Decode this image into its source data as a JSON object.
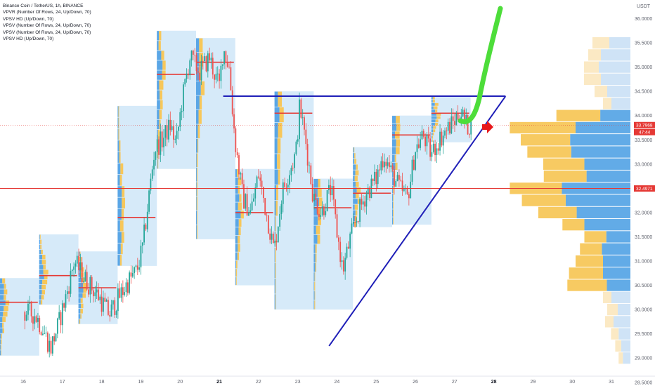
{
  "legend": {
    "title": "Binance Coin / TetherUS, 1h, BINANCE",
    "indicators": [
      "VPVR (Number Of Rows, 24, Up/Down, 70)",
      "VPSV HD (Up/Down, 70)",
      "VPSV (Number Of Rows, 24, Up/Down, 70)",
      "VPSV (Number Of Rows, 24, Up/Down, 70)",
      "VPSV HD (Up/Down, 70)"
    ]
  },
  "price_axis": {
    "currency": "USDT",
    "ticks": [
      "36.0000",
      "35.5000",
      "35.0000",
      "34.5000",
      "34.0000",
      "33.5000",
      "33.0000",
      "32.5000",
      "32.0000",
      "31.5000",
      "31.0000",
      "30.5000",
      "30.0000",
      "29.5000",
      "29.0000",
      "28.5000"
    ],
    "current_price": "33.7968",
    "countdown": "47:44",
    "marked_price": "32.4971"
  },
  "time_axis": {
    "ticks": [
      "16",
      "17",
      "18",
      "19",
      "20",
      "21",
      "22",
      "23",
      "24",
      "25",
      "26",
      "27",
      "28",
      "29",
      "30",
      "31"
    ],
    "bold_ticks": [
      "21",
      "28"
    ]
  },
  "colors": {
    "up": "#26a69a",
    "down": "#ef5350",
    "profile_box": "#cfe6f8",
    "vol_up": "#5aa6e6",
    "vol_down": "#f7c75a",
    "poc": "#e53935",
    "trendline": "#1f1fb8",
    "drawing_green": "#4ddd3a",
    "arrow_red": "#e8191c",
    "price_line": "#e53935"
  },
  "chart_data": {
    "type": "candlestick",
    "symbol": "Binance Coin / TetherUS",
    "interval": "1h",
    "ylim": [
      28.3,
      36.3
    ],
    "session_days": [
      "16",
      "17",
      "18",
      "19",
      "20",
      "21",
      "22",
      "23",
      "24",
      "25",
      "26",
      "27"
    ],
    "session_ranges": [
      {
        "day": "16",
        "high": 30.65,
        "low": 29.05,
        "poc": 30.15
      },
      {
        "day": "17",
        "high": 31.55,
        "low": 30.1,
        "poc": 30.7
      },
      {
        "day": "18",
        "high": 31.2,
        "low": 29.7,
        "poc": 30.45
      },
      {
        "day": "19",
        "high": 34.2,
        "low": 30.9,
        "poc": 31.9
      },
      {
        "day": "20",
        "high": 35.75,
        "low": 32.9,
        "poc": 34.85
      },
      {
        "day": "21",
        "high": 35.6,
        "low": 31.45,
        "poc": 35.1
      },
      {
        "day": "22",
        "high": 32.9,
        "low": 30.5,
        "poc": 32.0
      },
      {
        "day": "23",
        "high": 34.5,
        "low": 30.0,
        "poc": 34.05
      },
      {
        "day": "24",
        "high": 32.7,
        "low": 30.0,
        "poc": 32.1
      },
      {
        "day": "25",
        "high": 33.35,
        "low": 31.7,
        "poc": 32.4
      },
      {
        "day": "26",
        "high": 34.0,
        "low": 31.75,
        "poc": 33.6
      },
      {
        "day": "27",
        "high": 34.4,
        "low": 33.45,
        "poc": 34.05
      }
    ],
    "close_path": [
      [
        16.0,
        29.95
      ],
      [
        16.3,
        29.9
      ],
      [
        16.5,
        29.6
      ],
      [
        16.7,
        29.2
      ],
      [
        16.9,
        29.7
      ],
      [
        17.1,
        30.3
      ],
      [
        17.3,
        31.0
      ],
      [
        17.6,
        30.6
      ],
      [
        17.9,
        30.3
      ],
      [
        18.2,
        29.9
      ],
      [
        18.4,
        30.2
      ],
      [
        18.7,
        30.6
      ],
      [
        18.9,
        30.8
      ],
      [
        19.05,
        31.3
      ],
      [
        19.2,
        32.3
      ],
      [
        19.35,
        33.3
      ],
      [
        19.55,
        33.5
      ],
      [
        19.75,
        33.8
      ],
      [
        19.9,
        33.4
      ],
      [
        20.05,
        34.3
      ],
      [
        20.25,
        35.2
      ],
      [
        20.5,
        34.9
      ],
      [
        20.75,
        35.2
      ],
      [
        20.9,
        34.8
      ],
      [
        21.0,
        34.6
      ],
      [
        21.1,
        35.4
      ],
      [
        21.25,
        35.0
      ],
      [
        21.4,
        33.5
      ],
      [
        21.6,
        32.3
      ],
      [
        21.8,
        32.0
      ],
      [
        22.0,
        32.8
      ],
      [
        22.2,
        32.0
      ],
      [
        22.4,
        31.2
      ],
      [
        22.6,
        32.4
      ],
      [
        22.8,
        32.9
      ],
      [
        22.95,
        33.2
      ],
      [
        23.05,
        34.2
      ],
      [
        23.2,
        33.5
      ],
      [
        23.4,
        32.3
      ],
      [
        23.6,
        32.0
      ],
      [
        23.85,
        32.5
      ],
      [
        24.0,
        31.6
      ],
      [
        24.15,
        30.8
      ],
      [
        24.35,
        31.5
      ],
      [
        24.55,
        32.0
      ],
      [
        24.75,
        32.4
      ],
      [
        25.0,
        32.7
      ],
      [
        25.2,
        33.2
      ],
      [
        25.4,
        32.8
      ],
      [
        25.6,
        32.5
      ],
      [
        25.8,
        32.3
      ],
      [
        26.0,
        33.3
      ],
      [
        26.2,
        33.6
      ],
      [
        26.4,
        33.2
      ],
      [
        26.6,
        33.5
      ],
      [
        26.8,
        33.7
      ],
      [
        27.0,
        33.9
      ],
      [
        27.15,
        34.1
      ],
      [
        27.3,
        33.8
      ],
      [
        27.42,
        33.8
      ]
    ],
    "vpvr_levels": [
      {
        "price": 34.0,
        "up": 80,
        "down": 55
      },
      {
        "price": 33.75,
        "up": 120,
        "down": 100
      },
      {
        "price": 33.5,
        "up": 90,
        "down": 110
      },
      {
        "price": 33.25,
        "up": 80,
        "down": 108
      },
      {
        "price": 33.0,
        "up": 75,
        "down": 84
      },
      {
        "price": 32.75,
        "up": 78,
        "down": 80
      },
      {
        "price": 32.5,
        "up": 95,
        "down": 125
      },
      {
        "price": 32.25,
        "up": 80,
        "down": 118
      },
      {
        "price": 32.0,
        "up": 70,
        "down": 98
      },
      {
        "price": 31.75,
        "up": 40,
        "down": 84
      },
      {
        "price": 31.5,
        "up": 40,
        "down": 44
      },
      {
        "price": 31.25,
        "up": 40,
        "down": 52
      },
      {
        "price": 31.0,
        "up": 50,
        "down": 50
      },
      {
        "price": 30.75,
        "up": 62,
        "down": 50
      },
      {
        "price": 30.5,
        "up": 72,
        "down": 43
      }
    ],
    "annotations": {
      "resistance": 34.4,
      "support_from": [
        23.8,
        29.25
      ],
      "support_to": [
        28.3,
        34.4
      ],
      "current_price": 33.7968,
      "marked_price": 32.4971
    }
  }
}
